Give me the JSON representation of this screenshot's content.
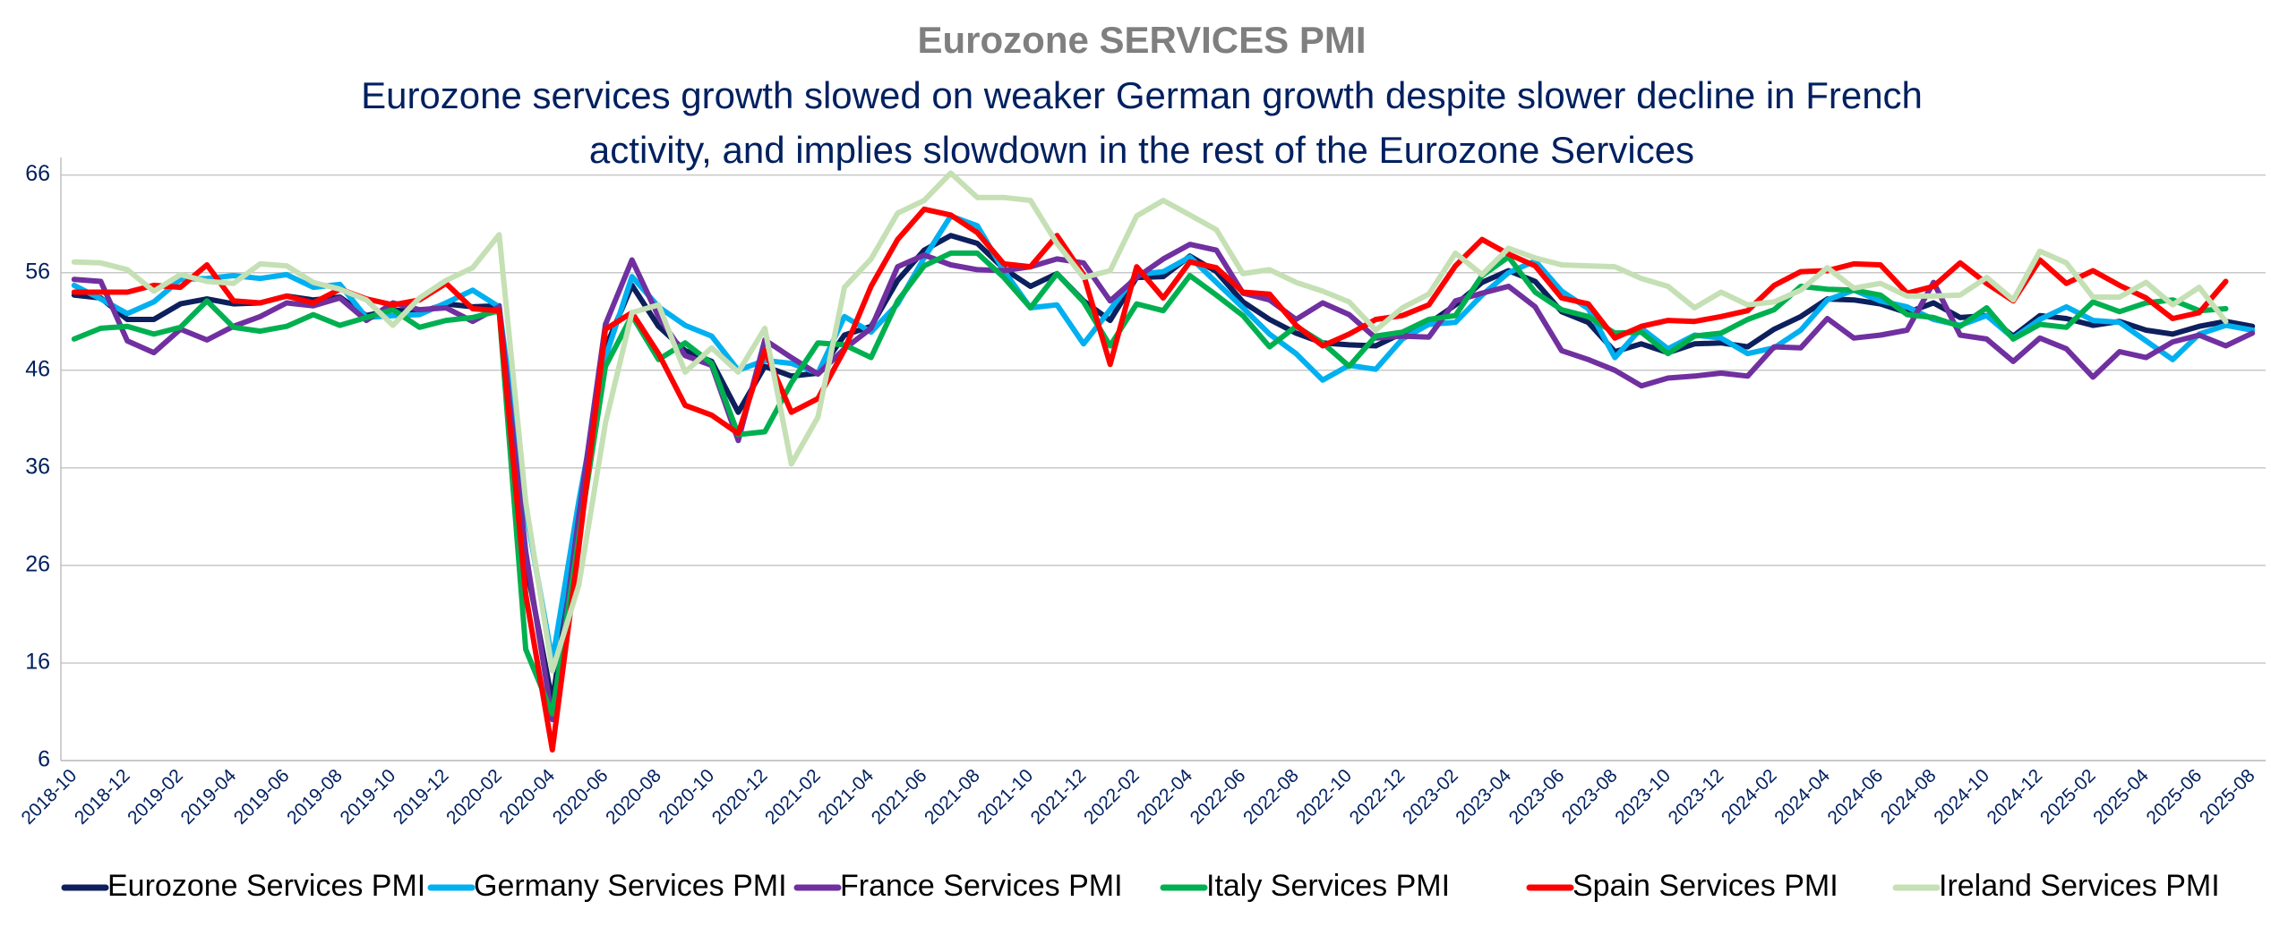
{
  "chart_data": {
    "type": "line",
    "title": "Eurozone  SERVICES  PMI",
    "subtitle": [
      "Eurozone services growth slowed on weaker German growth despite slower decline in French",
      "activity, and implies slowdown in the rest of the Eurozone Services"
    ],
    "categories": [
      "2018-10",
      null,
      "2018-12",
      null,
      "2019-02",
      null,
      "2019-04",
      null,
      "2019-06",
      null,
      "2019-08",
      null,
      "2019-10",
      null,
      "2019-12",
      null,
      "2020-02",
      null,
      "2020-04",
      null,
      "2020-06",
      null,
      "2020-08",
      null,
      "2020-10",
      null,
      "2020-12",
      null,
      "2021-02",
      null,
      "2021-04",
      null,
      "2021-06",
      null,
      "2021-08",
      null,
      "2021-10",
      null,
      "2021-12",
      null,
      "2022-02",
      null,
      "2022-04",
      null,
      "2022-06",
      null,
      "2022-08",
      null,
      "2022-10",
      null,
      "2022-12",
      null,
      "2023-02",
      null,
      "2023-04",
      null,
      "2023-06",
      null,
      "2023-08",
      null,
      "2023-10",
      null,
      "2023-12",
      null,
      "2024-02",
      null,
      "2024-04",
      null,
      "2024-06",
      null,
      "2024-08",
      null,
      "2024-10",
      null,
      "2024-12",
      null,
      "2025-02",
      null,
      "2025-04",
      null,
      "2025-06",
      null,
      "2025-08"
    ],
    "series": [
      {
        "name": "Eurozone Services PMI",
        "color": "#0d1f5c",
        "values": [
          53.7,
          53.4,
          51.2,
          51.2,
          52.8,
          53.3,
          52.8,
          52.9,
          53.6,
          53.2,
          53.5,
          51.6,
          52.2,
          51.9,
          52.8,
          52.5,
          52.6,
          26.4,
          12.0,
          30.5,
          48.3,
          54.7,
          50.5,
          48.0,
          46.9,
          41.7,
          46.4,
          45.4,
          45.7,
          49.6,
          50.5,
          55.2,
          58.3,
          59.8,
          59.0,
          56.4,
          54.6,
          55.9,
          53.1,
          51.1,
          55.5,
          55.6,
          57.7,
          56.1,
          53.0,
          51.2,
          49.8,
          48.8,
          48.6,
          48.5,
          49.8,
          50.8,
          52.7,
          55.0,
          56.2,
          55.1,
          52.0,
          50.9,
          47.9,
          48.7,
          47.8,
          48.7,
          48.8,
          48.4,
          50.2,
          51.5,
          53.3,
          53.2,
          52.8,
          51.9,
          52.9,
          51.4,
          51.6,
          49.5,
          51.6,
          51.3,
          50.6,
          51.0,
          50.1,
          49.7,
          50.5,
          51.0,
          50.5
        ]
      },
      {
        "name": "Germany Services PMI",
        "color": "#00b0f0",
        "values": [
          54.7,
          53.3,
          51.8,
          53.0,
          55.3,
          55.4,
          55.7,
          55.4,
          55.8,
          54.5,
          54.8,
          51.4,
          51.6,
          51.7,
          52.9,
          54.2,
          52.5,
          31.7,
          16.2,
          32.6,
          47.3,
          55.6,
          52.5,
          50.6,
          49.5,
          46.0,
          47.0,
          46.7,
          45.7,
          51.5,
          49.9,
          52.8,
          57.5,
          61.8,
          60.8,
          56.2,
          52.4,
          52.7,
          48.7,
          52.2,
          55.8,
          56.1,
          57.6,
          55.0,
          52.4,
          49.7,
          47.7,
          45.0,
          46.5,
          46.1,
          49.2,
          50.7,
          50.9,
          53.7,
          56.0,
          57.2,
          54.1,
          52.3,
          47.3,
          50.3,
          48.2,
          49.6,
          49.3,
          47.7,
          48.3,
          50.1,
          53.2,
          54.2,
          53.1,
          52.5,
          51.2,
          50.6,
          51.6,
          49.3,
          51.2,
          52.5,
          51.1,
          50.9,
          49.0,
          47.1,
          49.7,
          50.6,
          50.1
        ]
      },
      {
        "name": "France Services PMI",
        "color": "#7030a0",
        "values": [
          55.3,
          55.1,
          49.0,
          47.8,
          50.2,
          49.1,
          50.5,
          51.5,
          52.9,
          52.6,
          53.4,
          51.1,
          52.9,
          52.2,
          52.4,
          51.0,
          52.5,
          27.4,
          10.2,
          31.1,
          50.7,
          57.3,
          51.5,
          47.5,
          46.5,
          38.8,
          49.1,
          47.3,
          45.6,
          48.2,
          50.3,
          56.6,
          57.8,
          56.8,
          56.3,
          56.2,
          56.6,
          57.4,
          57.0,
          53.1,
          55.5,
          57.4,
          58.9,
          58.3,
          53.9,
          53.2,
          51.2,
          52.9,
          51.7,
          49.3,
          49.5,
          49.4,
          53.1,
          53.9,
          54.6,
          52.5,
          48.0,
          47.1,
          46.0,
          44.4,
          45.2,
          45.4,
          45.7,
          45.4,
          48.4,
          48.3,
          51.3,
          49.3,
          49.6,
          50.1,
          55.0,
          49.6,
          49.2,
          46.9,
          49.3,
          48.2,
          45.3,
          47.9,
          47.3,
          48.9,
          49.6,
          48.5,
          49.8
        ]
      },
      {
        "name": "Italy Services PMI",
        "color": "#00b050",
        "values": [
          49.2,
          50.3,
          50.5,
          49.7,
          50.4,
          53.1,
          50.4,
          50.0,
          50.5,
          51.7,
          50.6,
          51.4,
          52.2,
          50.4,
          51.1,
          51.4,
          52.1,
          17.4,
          10.8,
          28.9,
          46.4,
          51.6,
          47.1,
          48.8,
          46.7,
          39.4,
          39.7,
          44.7,
          48.8,
          48.6,
          47.3,
          53.1,
          56.7,
          58.0,
          58.0,
          55.5,
          52.4,
          55.9,
          53.0,
          48.5,
          52.8,
          52.1,
          55.7,
          53.7,
          51.6,
          48.4,
          50.5,
          48.8,
          46.4,
          49.5,
          49.9,
          51.2,
          51.6,
          55.7,
          57.6,
          54.0,
          52.2,
          51.5,
          49.8,
          49.9,
          47.7,
          49.5,
          49.8,
          51.2,
          52.2,
          54.6,
          54.3,
          54.2,
          53.7,
          51.7,
          51.4,
          50.5,
          52.4,
          49.2,
          50.7,
          50.4,
          53.0,
          52.0,
          52.9,
          53.2,
          52.1,
          52.3,
          null
        ]
      },
      {
        "name": "Spain Services PMI",
        "color": "#ff0000",
        "values": [
          54.0,
          54.0,
          54.0,
          54.7,
          54.5,
          56.8,
          53.1,
          52.9,
          53.6,
          52.9,
          54.3,
          53.3,
          52.7,
          53.2,
          54.9,
          52.3,
          52.1,
          23.0,
          7.1,
          27.9,
          50.2,
          51.9,
          47.7,
          42.4,
          41.4,
          39.5,
          48.0,
          41.7,
          43.1,
          48.1,
          54.6,
          59.4,
          62.5,
          61.9,
          60.1,
          56.9,
          56.6,
          59.8,
          55.8,
          46.6,
          56.6,
          53.4,
          57.1,
          56.5,
          54.0,
          53.8,
          50.6,
          48.5,
          49.7,
          51.2,
          51.6,
          52.7,
          56.7,
          59.4,
          57.9,
          56.7,
          53.4,
          52.8,
          49.3,
          50.5,
          51.1,
          51.0,
          51.5,
          52.1,
          54.7,
          56.1,
          56.2,
          56.9,
          56.8,
          53.9,
          54.6,
          57.0,
          54.9,
          53.1,
          57.3,
          54.9,
          56.2,
          54.7,
          53.4,
          51.3,
          51.9,
          55.1,
          null
        ]
      },
      {
        "name": "Ireland Services PMI",
        "color": "#c5e0b4",
        "values": [
          57.1,
          57.0,
          56.3,
          54.1,
          55.8,
          55.1,
          54.9,
          56.9,
          56.7,
          55.0,
          54.3,
          53.2,
          50.6,
          53.4,
          55.2,
          56.5,
          59.9,
          32.5,
          15.2,
          24.0,
          40.6,
          51.9,
          52.7,
          45.8,
          48.3,
          45.8,
          50.3,
          36.4,
          41.2,
          54.5,
          57.4,
          62.1,
          63.4,
          66.2,
          63.7,
          63.7,
          63.4,
          59.0,
          55.5,
          56.2,
          61.8,
          63.4,
          61.9,
          60.4,
          55.9,
          56.3,
          55.0,
          54.1,
          53.0,
          50.1,
          52.4,
          53.8,
          58.0,
          55.8,
          58.5,
          57.5,
          56.8,
          56.7,
          56.6,
          55.4,
          54.6,
          52.4,
          54.0,
          52.7,
          53.0,
          54.2,
          56.5,
          54.4,
          54.9,
          53.6,
          53.6,
          53.7,
          55.5,
          53.2,
          58.2,
          57.0,
          53.5,
          53.5,
          55.0,
          52.7,
          54.5,
          51.0,
          null
        ]
      }
    ],
    "ylim": [
      6,
      67.8
    ],
    "yticks": [
      6,
      16,
      26,
      36,
      46,
      56,
      66
    ],
    "grid": true,
    "legend": "bottom"
  }
}
